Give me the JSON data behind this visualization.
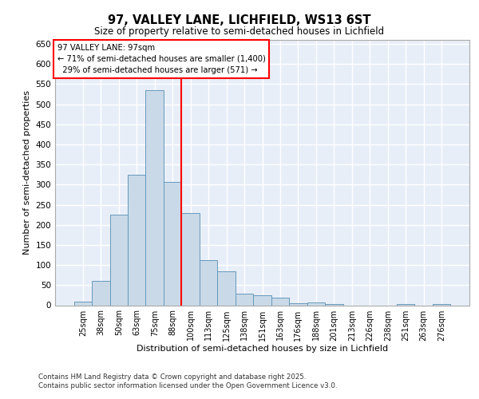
{
  "title_line1": "97, VALLEY LANE, LICHFIELD, WS13 6ST",
  "title_line2": "Size of property relative to semi-detached houses in Lichfield",
  "xlabel": "Distribution of semi-detached houses by size in Lichfield",
  "ylabel": "Number of semi-detached properties",
  "bins": [
    "25sqm",
    "38sqm",
    "50sqm",
    "63sqm",
    "75sqm",
    "88sqm",
    "100sqm",
    "113sqm",
    "125sqm",
    "138sqm",
    "151sqm",
    "163sqm",
    "176sqm",
    "188sqm",
    "201sqm",
    "213sqm",
    "226sqm",
    "238sqm",
    "251sqm",
    "263sqm",
    "276sqm"
  ],
  "values": [
    8,
    60,
    225,
    325,
    535,
    307,
    230,
    113,
    85,
    28,
    25,
    19,
    5,
    7,
    2,
    0,
    0,
    0,
    2,
    0,
    2
  ],
  "bar_color": "#c9d9e8",
  "bar_edge_color": "#6699bb",
  "red_line_after_index": 5,
  "pct_smaller": 71,
  "count_smaller": 1400,
  "pct_larger": 29,
  "count_larger": 571,
  "annotation_label": "97 VALLEY LANE: 97sqm",
  "ylim": [
    0,
    660
  ],
  "yticks": [
    0,
    50,
    100,
    150,
    200,
    250,
    300,
    350,
    400,
    450,
    500,
    550,
    600,
    650
  ],
  "background_color": "#e8eef8",
  "grid_color": "#d0d8e8",
  "footer_line1": "Contains HM Land Registry data © Crown copyright and database right 2025.",
  "footer_line2": "Contains public sector information licensed under the Open Government Licence v3.0."
}
